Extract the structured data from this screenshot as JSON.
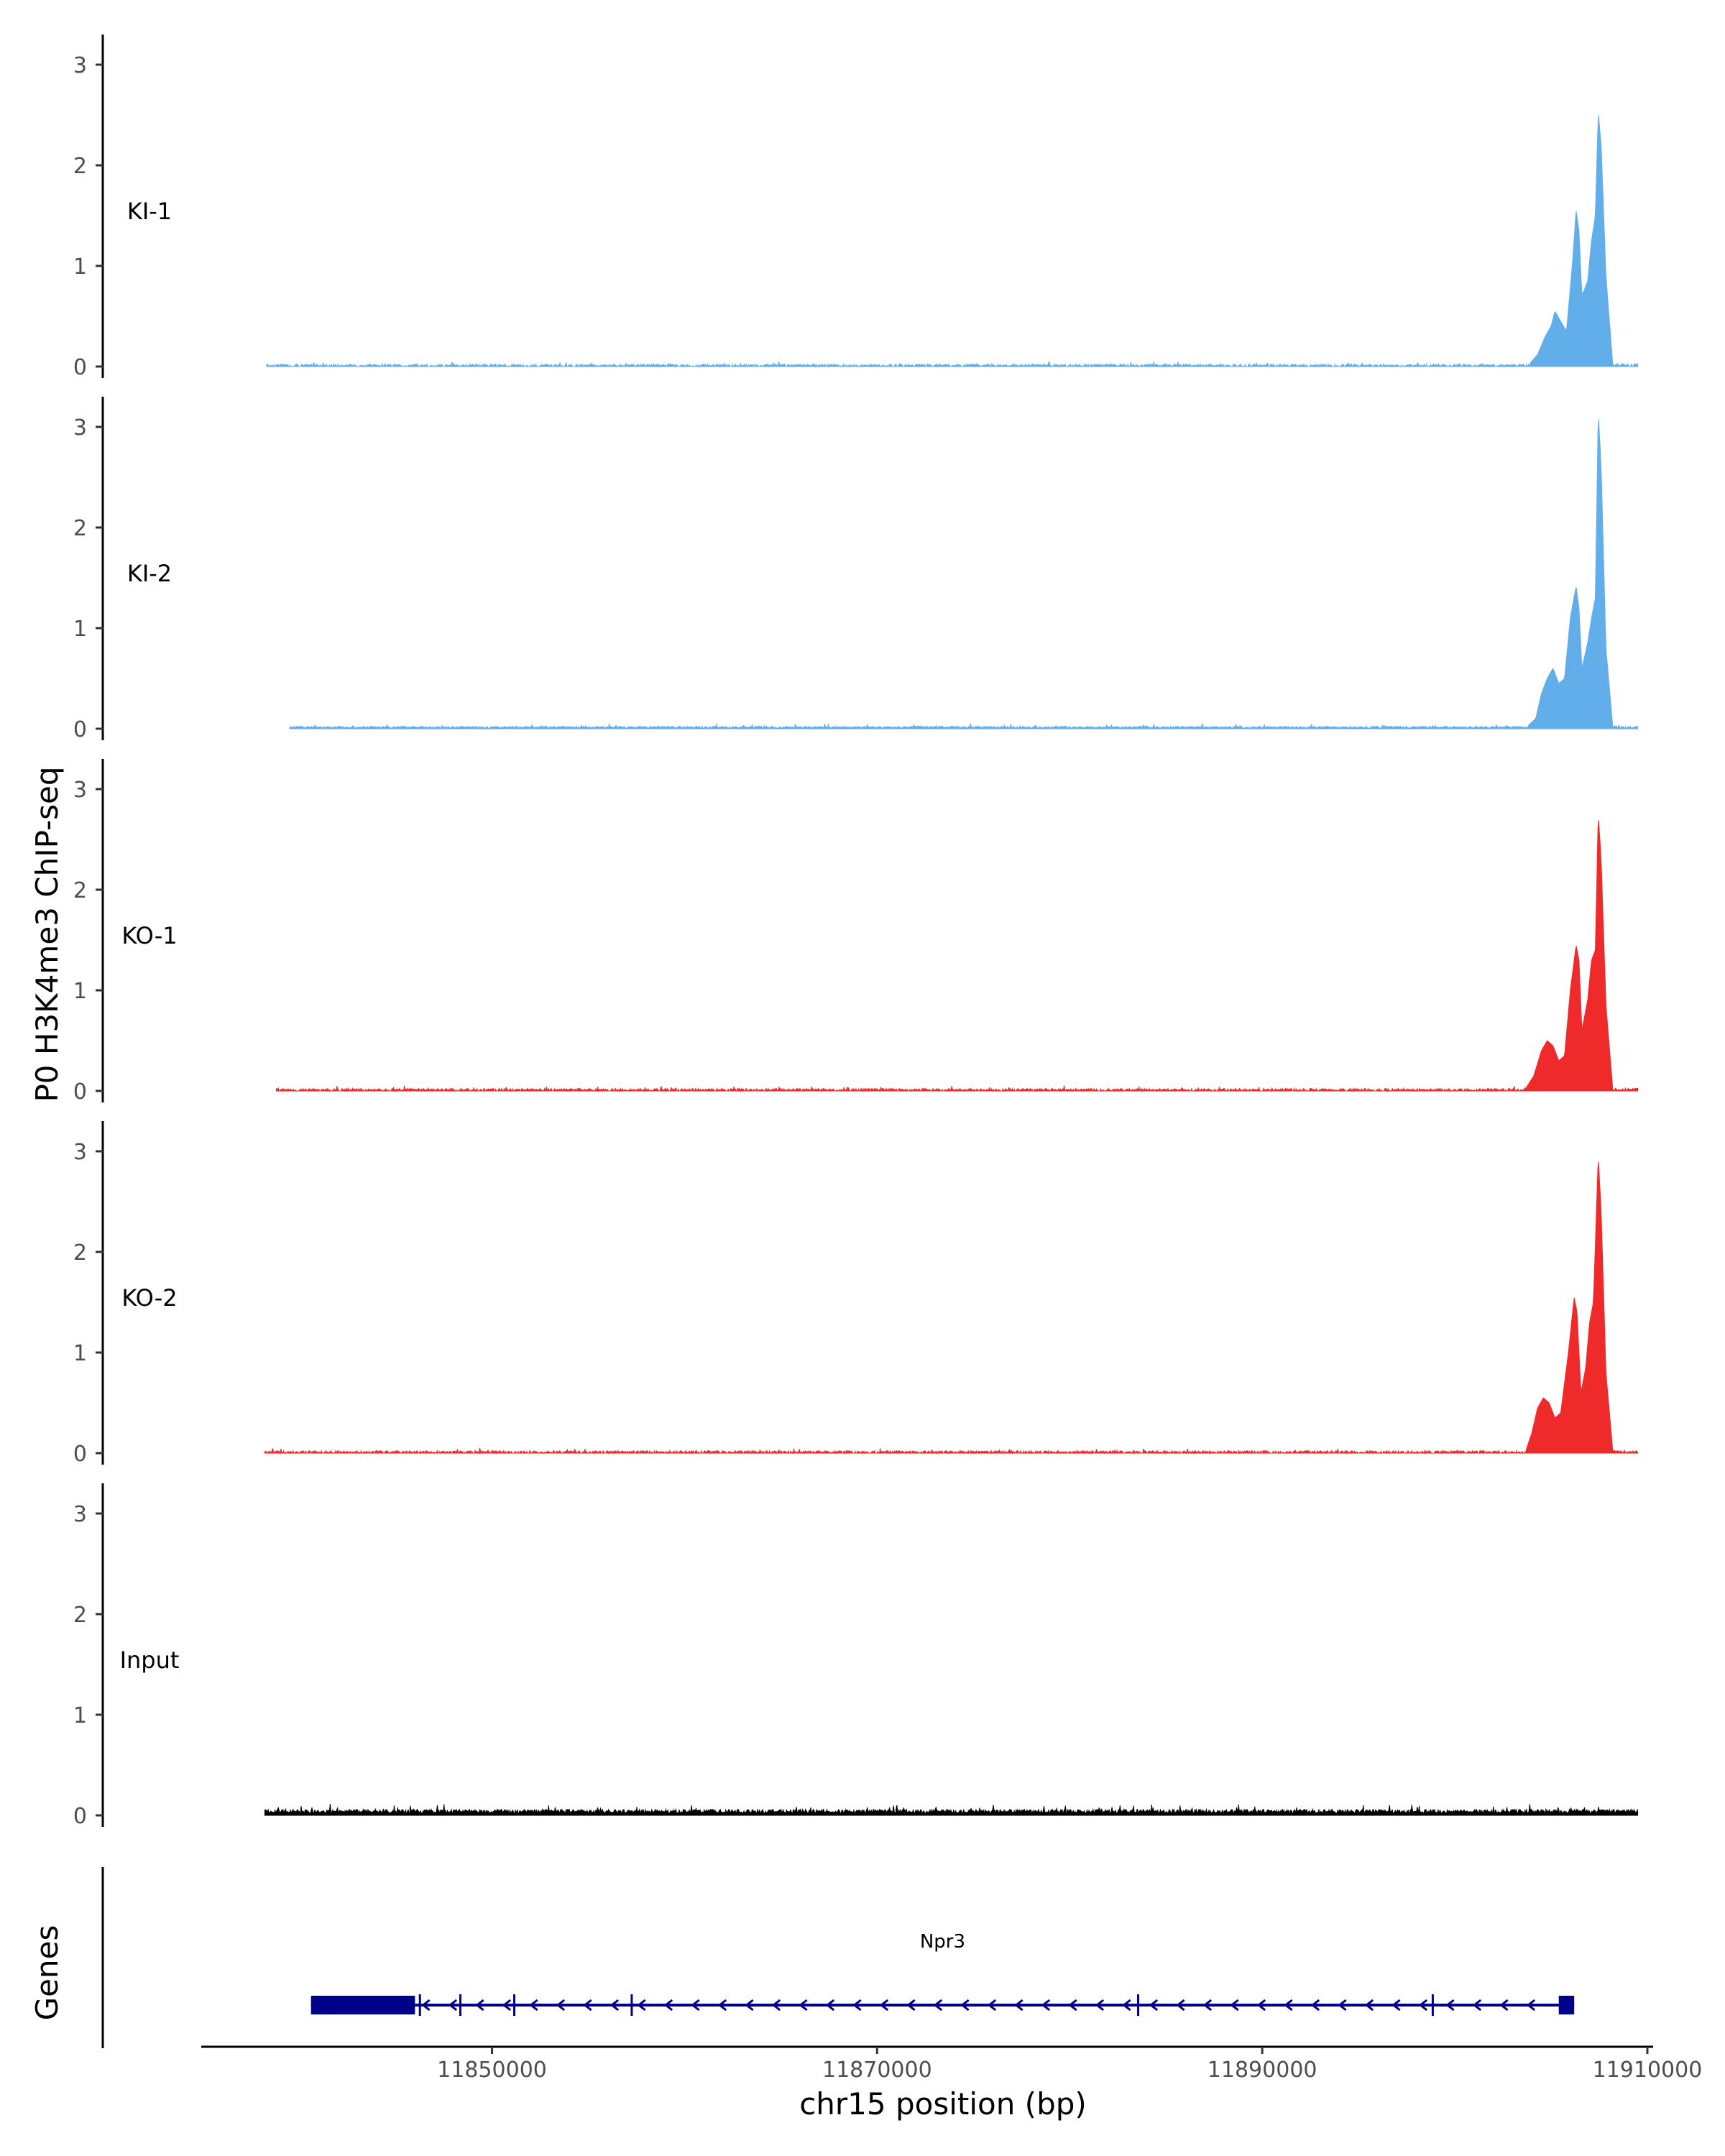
{
  "chart_data": {
    "type": "area",
    "ylabel": "P0 H3K4me3 ChIP-seq",
    "xlabel": "chr15 position (bp)",
    "region_ylabel": "Genes",
    "ylim": [
      0,
      3.3
    ],
    "yticks": [
      "0",
      "1",
      "2",
      "3"
    ],
    "xlim": [
      11834900,
      11910300
    ],
    "xticks": [
      {
        "value": 11850000,
        "label": "11850000"
      },
      {
        "value": 11870000,
        "label": "11870000"
      },
      {
        "value": 11890000,
        "label": "11890000"
      },
      {
        "value": 11910000,
        "label": "11910000"
      }
    ],
    "grid": false,
    "series": [
      {
        "name": "KI-1",
        "color": "#62AEEA",
        "x_start": 11838300,
        "x_end": 11909500,
        "baseline_gaps": true,
        "peaks": [
          [
            11903900,
            0.03
          ],
          [
            11904300,
            0.12
          ],
          [
            11904700,
            0.3
          ],
          [
            11905000,
            0.4
          ],
          [
            11905200,
            0.55
          ],
          [
            11905500,
            0.45
          ],
          [
            11905800,
            0.35
          ],
          [
            11906100,
            1.0
          ],
          [
            11906300,
            1.55
          ],
          [
            11906450,
            1.35
          ],
          [
            11906600,
            0.7
          ],
          [
            11906900,
            0.85
          ],
          [
            11907100,
            1.25
          ],
          [
            11907300,
            1.5
          ],
          [
            11907450,
            2.52
          ],
          [
            11907600,
            2.2
          ],
          [
            11907850,
            0.9
          ],
          [
            11908200,
            0.03
          ]
        ]
      },
      {
        "name": "KI-2",
        "color": "#62AEEA",
        "x_start": 11839500,
        "x_end": 11909500,
        "baseline_gaps": false,
        "peaks": [
          [
            11903800,
            0.03
          ],
          [
            11904200,
            0.1
          ],
          [
            11904500,
            0.35
          ],
          [
            11904800,
            0.5
          ],
          [
            11905100,
            0.6
          ],
          [
            11905400,
            0.45
          ],
          [
            11905700,
            0.5
          ],
          [
            11906000,
            1.1
          ],
          [
            11906300,
            1.42
          ],
          [
            11906450,
            1.2
          ],
          [
            11906600,
            0.6
          ],
          [
            11906900,
            0.85
          ],
          [
            11907100,
            1.1
          ],
          [
            11907300,
            1.3
          ],
          [
            11907450,
            3.15
          ],
          [
            11907600,
            2.6
          ],
          [
            11907850,
            0.8
          ],
          [
            11908200,
            0.03
          ]
        ]
      },
      {
        "name": "KO-1",
        "color": "#EE2A2A",
        "x_start": 11838800,
        "x_end": 11909500,
        "baseline_gaps": true,
        "peaks": [
          [
            11903700,
            0.03
          ],
          [
            11904100,
            0.15
          ],
          [
            11904500,
            0.4
          ],
          [
            11904800,
            0.5
          ],
          [
            11905100,
            0.45
          ],
          [
            11905400,
            0.3
          ],
          [
            11905700,
            0.35
          ],
          [
            11906000,
            1.0
          ],
          [
            11906300,
            1.45
          ],
          [
            11906450,
            1.3
          ],
          [
            11906600,
            0.6
          ],
          [
            11906900,
            0.9
          ],
          [
            11907100,
            1.3
          ],
          [
            11907300,
            1.4
          ],
          [
            11907450,
            2.75
          ],
          [
            11907600,
            2.3
          ],
          [
            11907850,
            0.85
          ],
          [
            11908200,
            0.03
          ]
        ]
      },
      {
        "name": "KO-2",
        "color": "#EE2A2A",
        "x_start": 11838200,
        "x_end": 11909500,
        "baseline_gaps": true,
        "peaks": [
          [
            11903700,
            0.03
          ],
          [
            11904000,
            0.2
          ],
          [
            11904300,
            0.45
          ],
          [
            11904600,
            0.55
          ],
          [
            11904900,
            0.5
          ],
          [
            11905200,
            0.35
          ],
          [
            11905500,
            0.4
          ],
          [
            11905900,
            1.0
          ],
          [
            11906200,
            1.55
          ],
          [
            11906350,
            1.4
          ],
          [
            11906550,
            0.6
          ],
          [
            11906800,
            0.85
          ],
          [
            11907000,
            1.3
          ],
          [
            11907200,
            1.5
          ],
          [
            11907450,
            2.95
          ],
          [
            11907600,
            2.4
          ],
          [
            11907850,
            0.8
          ],
          [
            11908200,
            0.03
          ]
        ]
      },
      {
        "name": "Input",
        "color": "#000000",
        "x_start": 11838200,
        "x_end": 11909500,
        "baseline_gaps": false,
        "peaks": []
      }
    ],
    "genes": [
      {
        "name": "Npr3",
        "strand": "-",
        "color": "#00008B",
        "start": 11840600,
        "end": 11906200,
        "exons": [
          {
            "start": 11840600,
            "end": 11846000,
            "thick": true
          },
          {
            "start": 11846200,
            "end": 11846300,
            "thick": false
          },
          {
            "start": 11848300,
            "end": 11848400,
            "thick": false
          },
          {
            "start": 11851100,
            "end": 11851200,
            "thick": false
          },
          {
            "start": 11857200,
            "end": 11857300,
            "thick": false
          },
          {
            "start": 11883500,
            "end": 11883600,
            "thick": false
          },
          {
            "start": 11898800,
            "end": 11898900,
            "thick": false
          },
          {
            "start": 11905400,
            "end": 11906200,
            "thick": true
          }
        ]
      }
    ]
  }
}
